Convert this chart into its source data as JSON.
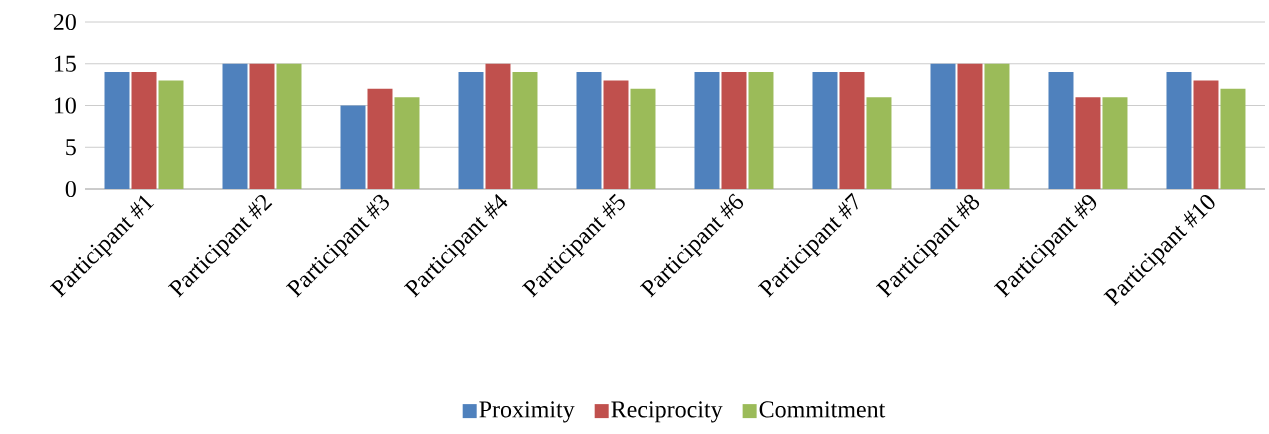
{
  "chart_data": {
    "type": "bar",
    "categories": [
      "Participant #1",
      "Participant #2",
      "Participant #3",
      "Participant #4",
      "Participant #5",
      "Participant #6",
      "Participant #7",
      "Participant #8",
      "Participant #9",
      "Participant #10"
    ],
    "series": [
      {
        "name": "Proximity",
        "color": "#4f81bd",
        "values": [
          14,
          15,
          10,
          14,
          14,
          14,
          14,
          15,
          14,
          14
        ]
      },
      {
        "name": "Reciprocity",
        "color": "#c0504d",
        "values": [
          14,
          15,
          12,
          15,
          13,
          14,
          14,
          15,
          11,
          13
        ]
      },
      {
        "name": "Commitment",
        "color": "#9bbb59",
        "values": [
          13,
          15,
          11,
          14,
          12,
          14,
          11,
          15,
          11,
          12
        ]
      }
    ],
    "ylim": [
      0,
      20
    ],
    "yticks": [
      0,
      5,
      10,
      15,
      20
    ],
    "grid": "y",
    "legend": "bottom"
  }
}
